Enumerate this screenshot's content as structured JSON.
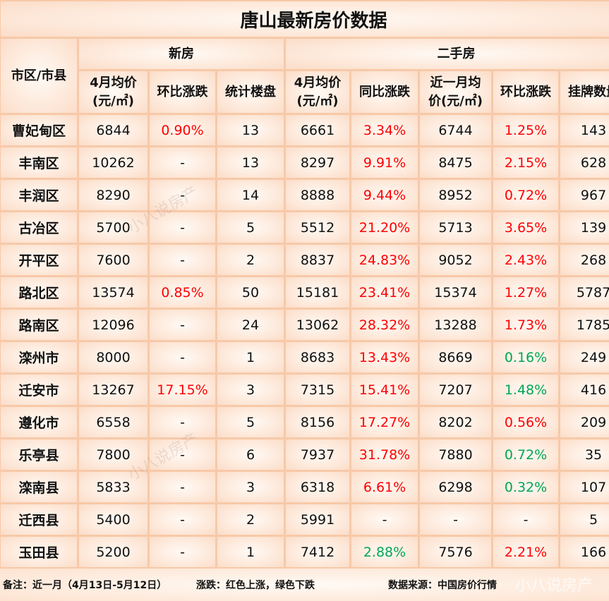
{
  "title": "唐山最新房价数据",
  "headers": {
    "district": "市区/市县",
    "new_group": "新房",
    "second_group": "二手房",
    "cols": [
      "4月均价\n(元/㎡)",
      "环比涨跌",
      "统计楼盘",
      "4月均价\n(元/㎡)",
      "同比涨跌",
      "近一月均\n价(元/㎡)",
      "环比涨跌",
      "挂牌数量"
    ]
  },
  "colors": {
    "up": "#ff0000",
    "down": "#00a651"
  },
  "rows": [
    [
      "曹妃甸区",
      "6844",
      "0.90%",
      "13",
      "6661",
      "3.34%",
      "6744",
      "1.25%",
      "143"
    ],
    [
      "丰南区",
      "10262",
      "-",
      "13",
      "8297",
      "9.91%",
      "8475",
      "2.15%",
      "628"
    ],
    [
      "丰润区",
      "8290",
      "-",
      "14",
      "8888",
      "9.44%",
      "8952",
      "0.72%",
      "967"
    ],
    [
      "古冶区",
      "5700",
      "-",
      "5",
      "5512",
      "21.20%",
      "5713",
      "3.65%",
      "139"
    ],
    [
      "开平区",
      "7600",
      "-",
      "2",
      "8837",
      "24.83%",
      "9052",
      "2.43%",
      "268"
    ],
    [
      "路北区",
      "13574",
      "0.85%",
      "50",
      "15181",
      "23.41%",
      "15374",
      "1.27%",
      "5787"
    ],
    [
      "路南区",
      "12096",
      "-",
      "24",
      "13062",
      "28.32%",
      "13288",
      "1.73%",
      "1785"
    ],
    [
      "滦州市",
      "8000",
      "-",
      "1",
      "8683",
      "13.43%",
      "8669",
      "0.16%",
      "249"
    ],
    [
      "迁安市",
      "13267",
      "17.15%",
      "3",
      "7315",
      "15.41%",
      "7207",
      "1.48%",
      "416"
    ],
    [
      "遵化市",
      "6558",
      "-",
      "5",
      "8156",
      "17.27%",
      "8202",
      "0.56%",
      "209"
    ],
    [
      "乐亭县",
      "7800",
      "-",
      "6",
      "7937",
      "31.78%",
      "7880",
      "0.72%",
      "35"
    ],
    [
      "滦南县",
      "5833",
      "-",
      "3",
      "6318",
      "6.61%",
      "6298",
      "0.32%",
      "107"
    ],
    [
      "迁西县",
      "5400",
      "-",
      "2",
      "5991",
      "-",
      "-",
      "-",
      "5"
    ],
    [
      "玉田县",
      "5200",
      "-",
      "1",
      "7412",
      "2.88%",
      "7576",
      "2.21%",
      "166"
    ]
  ],
  "row_trends": [
    [
      "up",
      "up",
      "up"
    ],
    [
      "",
      "up",
      "up"
    ],
    [
      "",
      "up",
      "up"
    ],
    [
      "",
      "up",
      "up"
    ],
    [
      "",
      "up",
      "up"
    ],
    [
      "up",
      "up",
      "up"
    ],
    [
      "",
      "up",
      "up"
    ],
    [
      "",
      "up",
      "down"
    ],
    [
      "up",
      "up",
      "down"
    ],
    [
      "",
      "up",
      "up"
    ],
    [
      "",
      "up",
      "down"
    ],
    [
      "",
      "up",
      "down"
    ],
    [
      "",
      "",
      ""
    ],
    [
      "",
      "down",
      "up"
    ]
  ],
  "footer": {
    "note": "备注：近一月（4月13日-5月12日）",
    "legend": "涨跌：红色上涨，绿色下跌",
    "source": "数据来源：中国房价行情"
  },
  "watermark": "小八说房产"
}
